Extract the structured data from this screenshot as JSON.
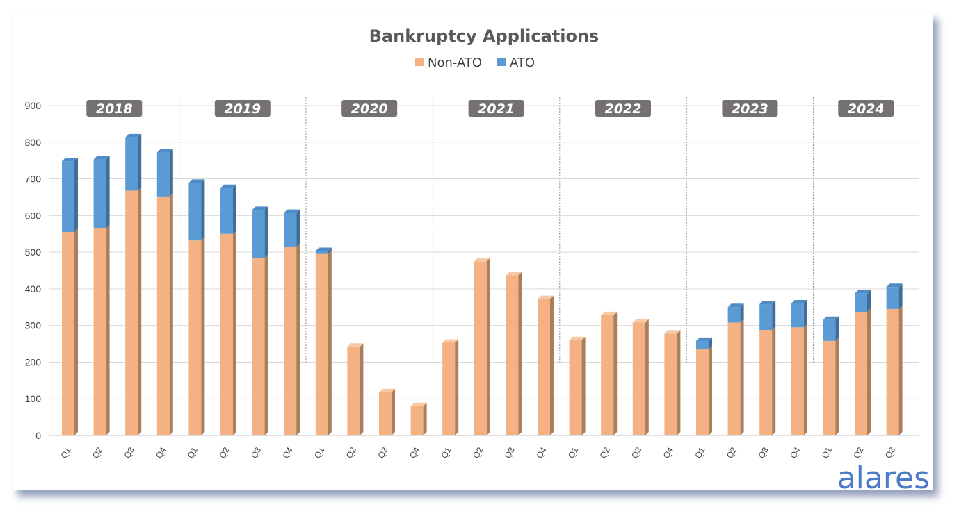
{
  "chart_data": {
    "type": "bar",
    "stacked": true,
    "title": "Bankruptcy Applications",
    "legend": {
      "placement": "top-center",
      "entries": [
        "Non-ATO",
        "ATO"
      ]
    },
    "ylim": [
      0,
      900
    ],
    "yticks": [
      0,
      100,
      200,
      300,
      400,
      500,
      600,
      700,
      800,
      900
    ],
    "grid": true,
    "groups": [
      "2018",
      "2019",
      "2020",
      "2021",
      "2022",
      "2023",
      "2024"
    ],
    "categories": [
      "Q1",
      "Q2",
      "Q3",
      "Q4",
      "Q1",
      "Q2",
      "Q3",
      "Q4",
      "Q1",
      "Q2",
      "Q3",
      "Q4",
      "Q1",
      "Q2",
      "Q3",
      "Q4",
      "Q1",
      "Q2",
      "Q3",
      "Q4",
      "Q1",
      "Q2",
      "Q3",
      "Q4",
      "Q1",
      "Q2",
      "Q3"
    ],
    "category_group": [
      0,
      0,
      0,
      0,
      1,
      1,
      1,
      1,
      2,
      2,
      2,
      2,
      3,
      3,
      3,
      3,
      4,
      4,
      4,
      4,
      5,
      5,
      5,
      5,
      6,
      6,
      6
    ],
    "series": [
      {
        "name": "Non-ATO",
        "color": "#f4b183",
        "values": [
          555,
          565,
          668,
          652,
          532,
          550,
          485,
          515,
          495,
          242,
          118,
          80,
          253,
          475,
          437,
          372,
          260,
          328,
          308,
          278,
          235,
          308,
          288,
          295,
          258,
          337,
          345
        ]
      },
      {
        "name": "ATO",
        "color": "#5b9bd5",
        "values": [
          193,
          188,
          145,
          120,
          157,
          125,
          130,
          92,
          8,
          0,
          0,
          0,
          0,
          0,
          0,
          0,
          0,
          0,
          0,
          0,
          23,
          42,
          70,
          65,
          57,
          50,
          60
        ]
      }
    ]
  },
  "logo": {
    "text": "alares"
  }
}
